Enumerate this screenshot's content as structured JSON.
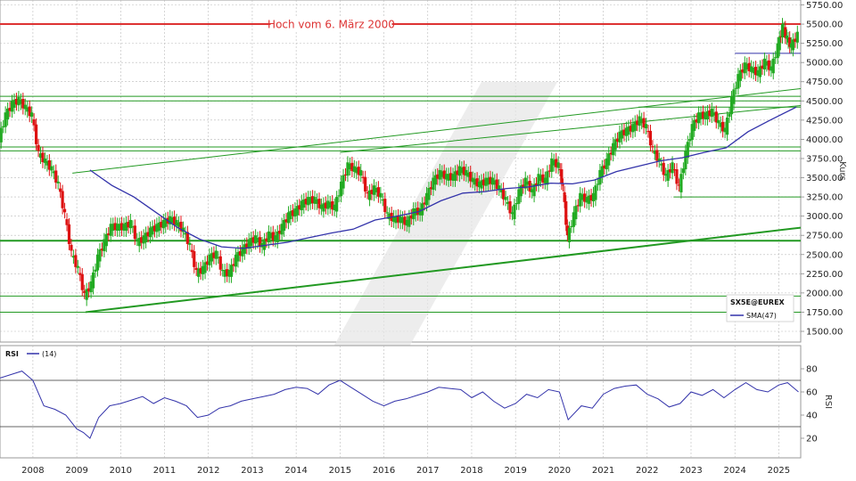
{
  "chart_data": [
    {
      "type": "candlestick",
      "ylabel": "Kurs",
      "ylim": [
        1500,
        5750
      ],
      "yticks": [
        1500,
        1750,
        2000,
        2250,
        2500,
        2750,
        3000,
        3250,
        3500,
        3750,
        4000,
        4250,
        4500,
        4750,
        5000,
        5250,
        5500,
        5750
      ],
      "ytick_labels": [
        "1500.00",
        "1750.00",
        "2000.00",
        "2250.00",
        "2500.00",
        "2750.00",
        "3000.00",
        "3250.00",
        "3500.00",
        "3750.00",
        "4000.00",
        "4250.00",
        "4500.00",
        "4750.00",
        "5000.00",
        "5250.00",
        "5500.00",
        "5750.00"
      ],
      "x_labels": [
        "2008",
        "2009",
        "2010",
        "2011",
        "2012",
        "2013",
        "2014",
        "2015",
        "2016",
        "2017",
        "2018",
        "2019",
        "2020",
        "2021",
        "2022",
        "2023",
        "2024",
        "2025"
      ],
      "x_start": 2007.25,
      "x_end": 2025.5,
      "grid": true,
      "up_color": "#22aa22",
      "down_color": "#dd1111",
      "series_close": [
        [
          2007.25,
          4000
        ],
        [
          2007.4,
          4300
        ],
        [
          2007.55,
          4450
        ],
        [
          2007.7,
          4500
        ],
        [
          2007.85,
          4400
        ],
        [
          2008.0,
          4300
        ],
        [
          2008.15,
          3800
        ],
        [
          2008.3,
          3700
        ],
        [
          2008.45,
          3600
        ],
        [
          2008.6,
          3400
        ],
        [
          2008.75,
          3000
        ],
        [
          2008.9,
          2500
        ],
        [
          2009.05,
          2300
        ],
        [
          2009.2,
          1950
        ],
        [
          2009.35,
          2100
        ],
        [
          2009.5,
          2450
        ],
        [
          2009.65,
          2650
        ],
        [
          2009.8,
          2850
        ],
        [
          2009.95,
          2850
        ],
        [
          2010.1,
          2850
        ],
        [
          2010.25,
          2900
        ],
        [
          2010.4,
          2650
        ],
        [
          2010.55,
          2700
        ],
        [
          2010.7,
          2800
        ],
        [
          2010.85,
          2850
        ],
        [
          2011.0,
          2900
        ],
        [
          2011.15,
          2950
        ],
        [
          2011.3,
          2900
        ],
        [
          2011.45,
          2800
        ],
        [
          2011.6,
          2600
        ],
        [
          2011.75,
          2250
        ],
        [
          2011.9,
          2300
        ],
        [
          2012.05,
          2450
        ],
        [
          2012.2,
          2500
        ],
        [
          2012.35,
          2250
        ],
        [
          2012.5,
          2250
        ],
        [
          2012.65,
          2450
        ],
        [
          2012.8,
          2550
        ],
        [
          2012.95,
          2650
        ],
        [
          2013.1,
          2700
        ],
        [
          2013.25,
          2600
        ],
        [
          2013.4,
          2750
        ],
        [
          2013.55,
          2700
        ],
        [
          2013.7,
          2850
        ],
        [
          2013.85,
          3000
        ],
        [
          2014.0,
          3050
        ],
        [
          2014.15,
          3150
        ],
        [
          2014.3,
          3200
        ],
        [
          2014.45,
          3200
        ],
        [
          2014.6,
          3100
        ],
        [
          2014.75,
          3150
        ],
        [
          2014.9,
          3100
        ],
        [
          2015.05,
          3400
        ],
        [
          2015.2,
          3650
        ],
        [
          2015.35,
          3600
        ],
        [
          2015.5,
          3550
        ],
        [
          2015.65,
          3250
        ],
        [
          2015.8,
          3350
        ],
        [
          2015.95,
          3250
        ],
        [
          2016.1,
          3000
        ],
        [
          2016.25,
          2950
        ],
        [
          2016.4,
          2950
        ],
        [
          2016.55,
          2900
        ],
        [
          2016.7,
          3050
        ],
        [
          2016.85,
          3050
        ],
        [
          2017.0,
          3250
        ],
        [
          2017.15,
          3450
        ],
        [
          2017.3,
          3550
        ],
        [
          2017.45,
          3500
        ],
        [
          2017.6,
          3500
        ],
        [
          2017.75,
          3600
        ],
        [
          2017.9,
          3550
        ],
        [
          2018.05,
          3450
        ],
        [
          2018.2,
          3400
        ],
        [
          2018.35,
          3450
        ],
        [
          2018.5,
          3450
        ],
        [
          2018.65,
          3350
        ],
        [
          2018.8,
          3200
        ],
        [
          2018.95,
          3000
        ],
        [
          2019.1,
          3300
        ],
        [
          2019.25,
          3450
        ],
        [
          2019.4,
          3300
        ],
        [
          2019.55,
          3500
        ],
        [
          2019.7,
          3450
        ],
        [
          2019.85,
          3700
        ],
        [
          2020.0,
          3650
        ],
        [
          2020.1,
          3350
        ],
        [
          2020.2,
          2700
        ],
        [
          2020.35,
          3000
        ],
        [
          2020.5,
          3250
        ],
        [
          2020.65,
          3200
        ],
        [
          2020.8,
          3250
        ],
        [
          2020.95,
          3550
        ],
        [
          2021.1,
          3700
        ],
        [
          2021.25,
          3900
        ],
        [
          2021.4,
          4050
        ],
        [
          2021.55,
          4100
        ],
        [
          2021.7,
          4150
        ],
        [
          2021.85,
          4250
        ],
        [
          2022.0,
          4150
        ],
        [
          2022.15,
          3850
        ],
        [
          2022.3,
          3700
        ],
        [
          2022.45,
          3500
        ],
        [
          2022.6,
          3650
        ],
        [
          2022.75,
          3350
        ],
        [
          2022.9,
          3800
        ],
        [
          2023.05,
          4150
        ],
        [
          2023.2,
          4300
        ],
        [
          2023.35,
          4300
        ],
        [
          2023.5,
          4350
        ],
        [
          2023.65,
          4200
        ],
        [
          2023.8,
          4100
        ],
        [
          2023.95,
          4500
        ],
        [
          2024.1,
          4800
        ],
        [
          2024.25,
          4950
        ],
        [
          2024.4,
          4900
        ],
        [
          2024.55,
          4850
        ],
        [
          2024.7,
          5000
        ],
        [
          2024.85,
          4900
        ],
        [
          2025.0,
          5200
        ],
        [
          2025.1,
          5450
        ],
        [
          2025.2,
          5300
        ],
        [
          2025.3,
          5200
        ],
        [
          2025.45,
          5350
        ]
      ],
      "sma_name": "SMA(47)",
      "sma_color": "#3333aa",
      "sma": [
        [
          2009.3,
          3600
        ],
        [
          2009.8,
          3400
        ],
        [
          2010.3,
          3250
        ],
        [
          2010.8,
          3050
        ],
        [
          2011.3,
          2850
        ],
        [
          2011.8,
          2700
        ],
        [
          2012.3,
          2600
        ],
        [
          2012.8,
          2580
        ],
        [
          2013.3,
          2620
        ],
        [
          2013.8,
          2660
        ],
        [
          2014.3,
          2720
        ],
        [
          2014.8,
          2780
        ],
        [
          2015.3,
          2830
        ],
        [
          2015.8,
          2950
        ],
        [
          2016.3,
          3000
        ],
        [
          2016.8,
          3060
        ],
        [
          2017.3,
          3200
        ],
        [
          2017.8,
          3300
        ],
        [
          2018.3,
          3320
        ],
        [
          2018.8,
          3360
        ],
        [
          2019.3,
          3380
        ],
        [
          2019.8,
          3430
        ],
        [
          2020.3,
          3420
        ],
        [
          2020.8,
          3470
        ],
        [
          2021.3,
          3580
        ],
        [
          2021.8,
          3650
        ],
        [
          2022.3,
          3720
        ],
        [
          2022.8,
          3760
        ],
        [
          2023.3,
          3830
        ],
        [
          2023.8,
          3890
        ],
        [
          2024.3,
          4100
        ],
        [
          2024.8,
          4250
        ],
        [
          2025.4,
          4420
        ]
      ],
      "horizontal_lines": [
        {
          "y": 5500,
          "color": "#dd3333",
          "width": 2,
          "label": "Hoch vom 6. März 2000",
          "label_x": 2014.8
        },
        {
          "y": 4500,
          "color": "#229922",
          "width": 1
        },
        {
          "y": 4560,
          "color": "#229922",
          "width": 1
        },
        {
          "y": 3900,
          "color": "#229922",
          "width": 1
        },
        {
          "y": 3850,
          "color": "#229922",
          "width": 1
        },
        {
          "y": 2680,
          "color": "#229922",
          "width": 2
        },
        {
          "y": 1960,
          "color": "#229922",
          "width": 1
        },
        {
          "y": 1750,
          "color": "#229922",
          "width": 1
        }
      ],
      "trend_lines": [
        {
          "x1": 2009.2,
          "y1": 1750,
          "x2": 2025.5,
          "y2": 2850,
          "color": "#229922",
          "width": 2
        },
        {
          "x1": 2008.9,
          "y1": 3560,
          "x2": 2025.5,
          "y2": 4660,
          "color": "#229922",
          "width": 1
        },
        {
          "x1": 2015.0,
          "y1": 3830,
          "x2": 2025.5,
          "y2": 4440,
          "color": "#229922",
          "width": 1
        },
        {
          "x1": 2021.8,
          "y1": 4420,
          "x2": 2025.5,
          "y2": 4420,
          "color": "#229922",
          "width": 1
        },
        {
          "x1": 2022.6,
          "y1": 3250,
          "x2": 2025.5,
          "y2": 3250,
          "color": "#229922",
          "width": 1
        },
        {
          "x1": 2024.0,
          "y1": 5120,
          "x2": 2025.5,
          "y2": 5120,
          "color": "#3333aa",
          "width": 1
        }
      ],
      "legend": {
        "ticker": "SX5E@EUREX",
        "sma_label": "SMA(47)"
      }
    },
    {
      "type": "line",
      "title": "RSI",
      "series_name": "(14)",
      "ylabel": "RSI",
      "ylim": [
        10,
        90
      ],
      "yticks": [
        20,
        40,
        60,
        80
      ],
      "bands": [
        30,
        70
      ],
      "color": "#3333aa",
      "x": [
        2007.25,
        2007.5,
        2007.75,
        2008.0,
        2008.25,
        2008.5,
        2008.75,
        2009.0,
        2009.15,
        2009.3,
        2009.5,
        2009.75,
        2010.0,
        2010.25,
        2010.5,
        2010.75,
        2011.0,
        2011.25,
        2011.5,
        2011.75,
        2012.0,
        2012.25,
        2012.5,
        2012.75,
        2013.0,
        2013.25,
        2013.5,
        2013.75,
        2014.0,
        2014.25,
        2014.5,
        2014.75,
        2015.0,
        2015.25,
        2015.5,
        2015.75,
        2016.0,
        2016.25,
        2016.5,
        2016.75,
        2017.0,
        2017.25,
        2017.5,
        2017.75,
        2018.0,
        2018.25,
        2018.5,
        2018.75,
        2019.0,
        2019.25,
        2019.5,
        2019.75,
        2020.0,
        2020.2,
        2020.5,
        2020.75,
        2021.0,
        2021.25,
        2021.5,
        2021.75,
        2022.0,
        2022.25,
        2022.5,
        2022.75,
        2023.0,
        2023.25,
        2023.5,
        2023.75,
        2024.0,
        2024.25,
        2024.5,
        2024.75,
        2025.0,
        2025.2,
        2025.45
      ],
      "values": [
        72,
        75,
        78,
        70,
        48,
        45,
        40,
        28,
        25,
        20,
        38,
        48,
        50,
        53,
        56,
        50,
        55,
        52,
        48,
        38,
        40,
        46,
        48,
        52,
        54,
        56,
        58,
        62,
        64,
        63,
        58,
        66,
        70,
        64,
        58,
        52,
        48,
        52,
        54,
        57,
        60,
        64,
        63,
        62,
        55,
        60,
        52,
        46,
        50,
        58,
        55,
        62,
        60,
        36,
        48,
        46,
        58,
        63,
        65,
        66,
        58,
        54,
        47,
        50,
        60,
        57,
        62,
        55,
        62,
        68,
        62,
        60,
        66,
        68,
        60
      ]
    }
  ]
}
